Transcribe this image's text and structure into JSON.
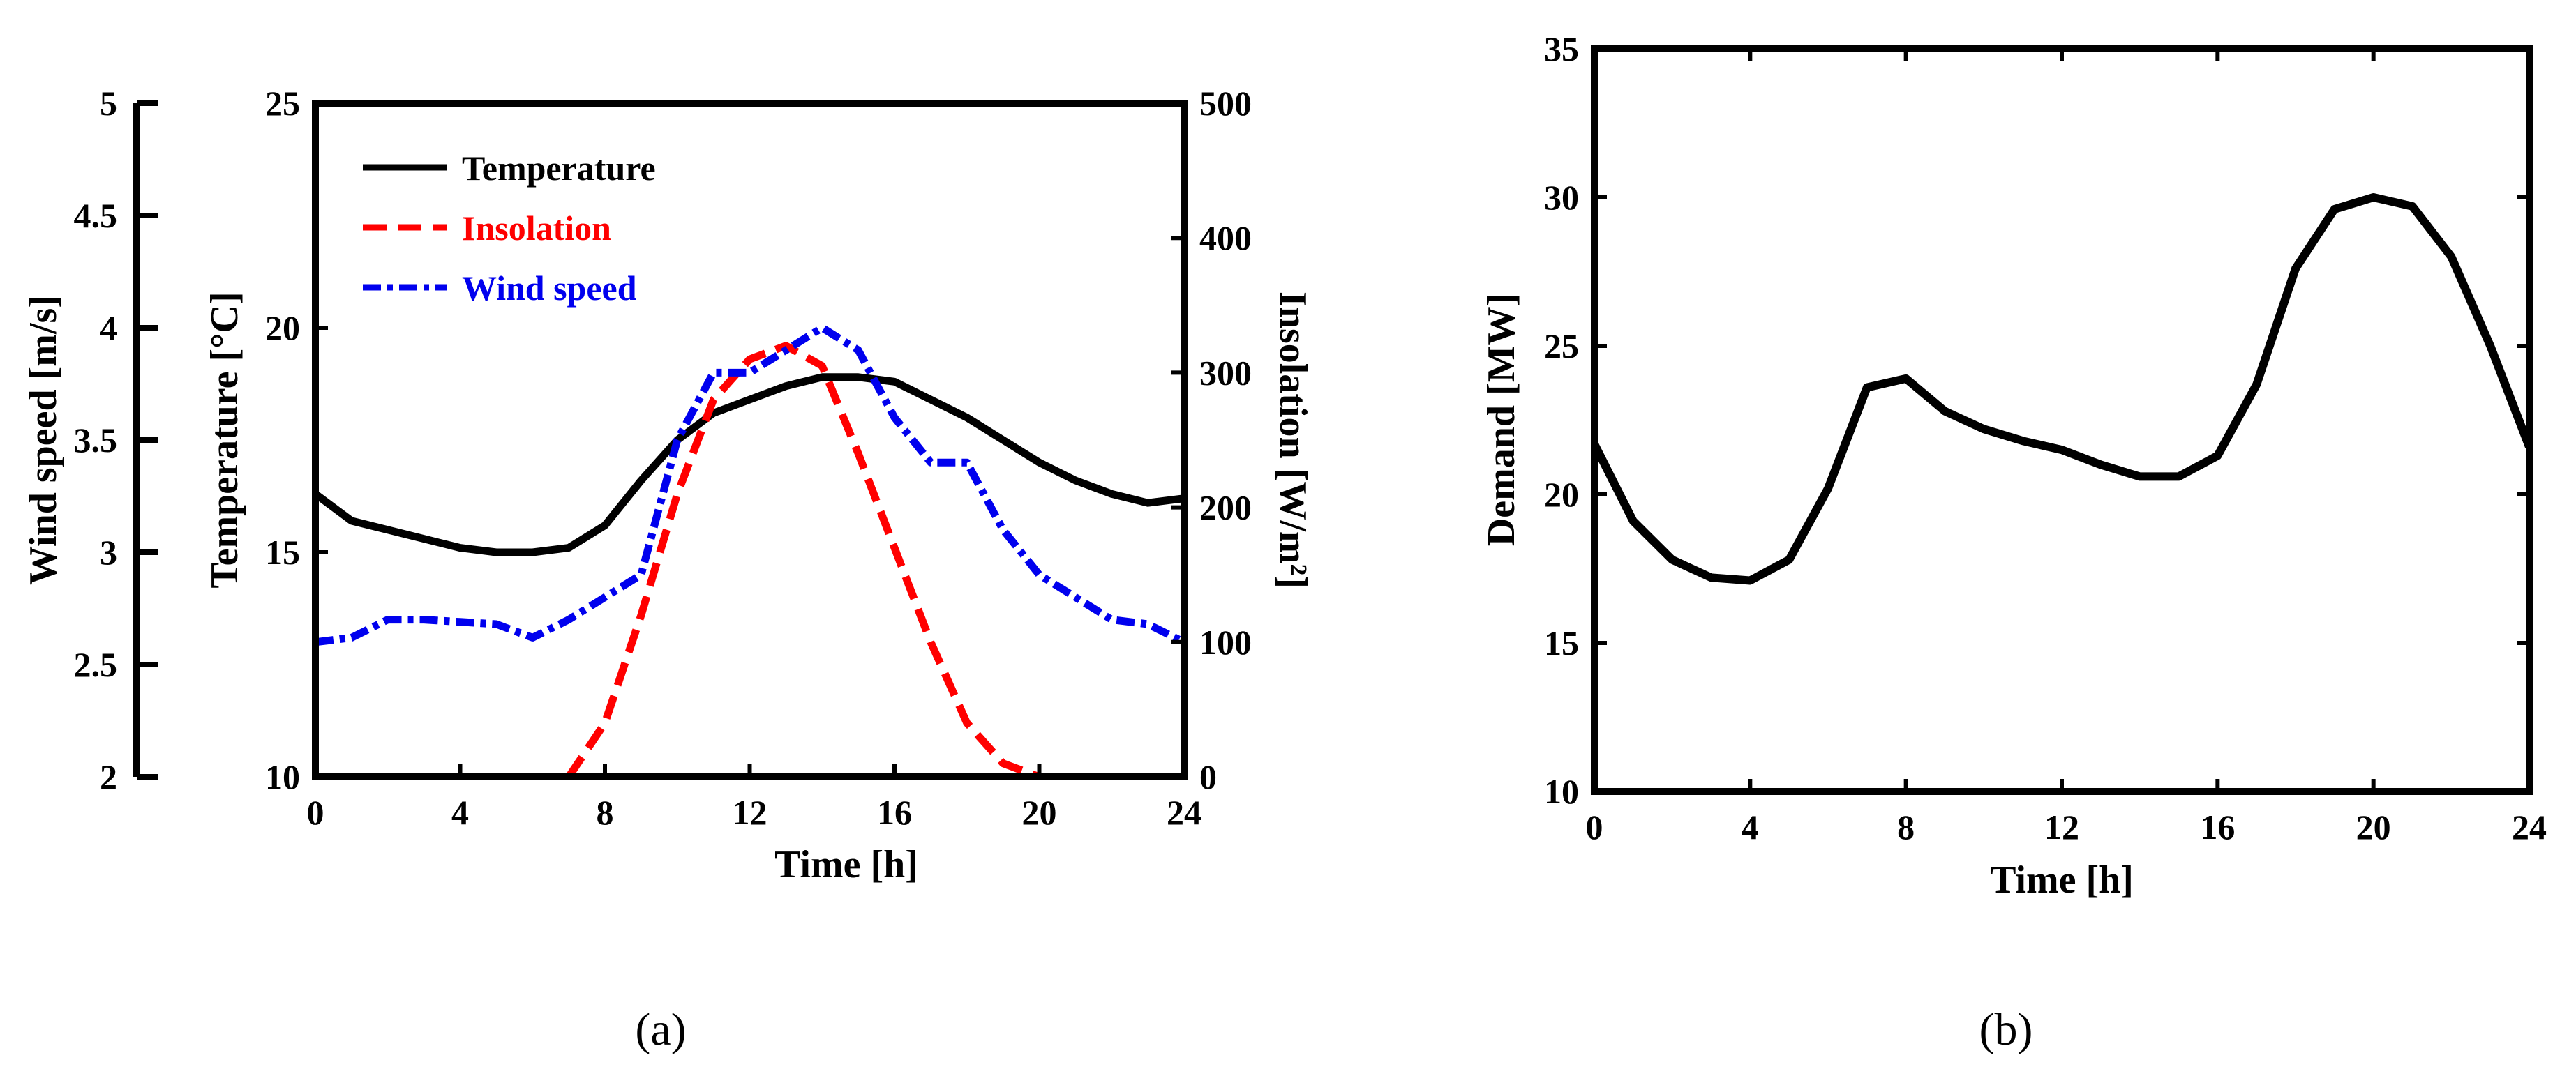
{
  "chart_data": [
    {
      "type": "line",
      "panel": "a",
      "caption": "(a)",
      "xlabel": "Time [h]",
      "xlim": [
        0,
        24
      ],
      "xticks": [
        0,
        4,
        8,
        12,
        16,
        20,
        24
      ],
      "axes": {
        "temperature": {
          "label": "Temperature [°C]",
          "ylim": [
            10,
            25
          ],
          "ticks": [
            10,
            15,
            20,
            25
          ]
        },
        "insolation": {
          "label": "Insolation [W/m²]",
          "ylim": [
            0,
            500
          ],
          "ticks": [
            0,
            100,
            200,
            300,
            400,
            500
          ]
        },
        "wind": {
          "label": "Wind speed [m/s]",
          "ylim": [
            2,
            5
          ],
          "ticks": [
            "2",
            "2.5",
            "3",
            "3.5",
            "4",
            "4.5",
            "5"
          ]
        }
      },
      "series": [
        {
          "name": "Temperature",
          "axis": "temperature",
          "color": "#000000",
          "dash": "solid",
          "x": [
            0,
            1,
            2,
            3,
            4,
            5,
            6,
            7,
            8,
            9,
            10,
            11,
            12,
            13,
            14,
            15,
            16,
            17,
            18,
            19,
            20,
            21,
            22,
            23,
            24
          ],
          "values": [
            16.3,
            15.7,
            15.5,
            15.3,
            15.1,
            15.0,
            15.0,
            15.1,
            15.6,
            16.6,
            17.5,
            18.1,
            18.4,
            18.7,
            18.9,
            18.9,
            18.8,
            18.4,
            18.0,
            17.5,
            17.0,
            16.6,
            16.3,
            16.1,
            16.2
          ]
        },
        {
          "name": "Insolation",
          "axis": "insolation",
          "color": "#ff0000",
          "dash": "dash",
          "x": [
            7,
            8,
            9,
            10,
            11,
            12,
            13,
            14,
            15,
            16,
            17,
            18,
            19,
            20
          ],
          "values": [
            0,
            40,
            120,
            210,
            280,
            310,
            320,
            305,
            240,
            170,
            100,
            40,
            10,
            0
          ]
        },
        {
          "name": "Wind speed",
          "axis": "wind",
          "color": "#0000ee",
          "dash": "dashdot",
          "x": [
            0,
            1,
            2,
            3,
            4,
            5,
            6,
            7,
            8,
            9,
            10,
            11,
            12,
            13,
            14,
            15,
            16,
            17,
            18,
            19,
            20,
            21,
            22,
            23,
            24
          ],
          "values": [
            2.6,
            2.62,
            2.7,
            2.7,
            2.69,
            2.68,
            2.62,
            2.7,
            2.8,
            2.9,
            3.5,
            3.8,
            3.8,
            3.9,
            4.0,
            3.9,
            3.6,
            3.4,
            3.4,
            3.1,
            2.9,
            2.8,
            2.7,
            2.68,
            2.6
          ]
        }
      ],
      "legend": {
        "position": "top-left",
        "entries": [
          "Temperature",
          "Insolation",
          "Wind speed"
        ]
      }
    },
    {
      "type": "line",
      "panel": "b",
      "caption": "(b)",
      "xlabel": "Time [h]",
      "ylabel": "Demand [MW]",
      "xlim": [
        0,
        24
      ],
      "ylim": [
        10,
        35
      ],
      "xticks": [
        0,
        4,
        8,
        12,
        16,
        20,
        24
      ],
      "yticks": [
        10,
        15,
        20,
        25,
        30,
        35
      ],
      "series": [
        {
          "name": "Demand",
          "color": "#000000",
          "dash": "solid",
          "x": [
            0,
            1,
            2,
            3,
            4,
            5,
            6,
            7,
            8,
            9,
            10,
            11,
            12,
            13,
            14,
            15,
            16,
            17,
            18,
            19,
            20,
            21,
            22,
            23,
            24
          ],
          "values": [
            21.7,
            19.1,
            17.8,
            17.2,
            17.1,
            17.8,
            20.2,
            23.6,
            23.9,
            22.8,
            22.2,
            21.8,
            21.5,
            21.0,
            20.6,
            20.6,
            21.3,
            23.7,
            27.6,
            29.6,
            30.0,
            29.7,
            28.0,
            25.0,
            21.6
          ]
        }
      ]
    }
  ]
}
